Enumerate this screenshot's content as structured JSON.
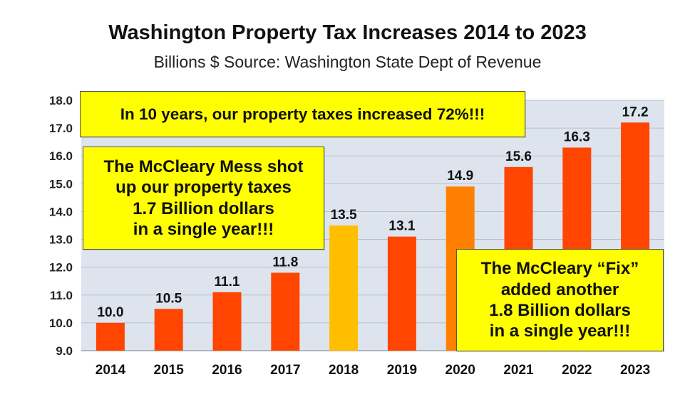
{
  "title": "Washington Property Tax Increases 2014 to 2023",
  "subtitle": "Billions $ Source: Washington State Dept of Revenue",
  "callouts": {
    "top": "In 10 years, our property taxes increased 72%!!!",
    "left": "The McCleary Mess shot\nup our property taxes\n1.7 Billion dollars\nin a single year!!!",
    "right": "The McCleary “Fix”\nadded another\n1.8 Billion dollars\nin a single year!!!"
  },
  "colors": {
    "bar_default": "#ff4500",
    "bar_2018": "#ffbe00",
    "bar_2020": "#ff8000",
    "plot_background": "#dde4ee",
    "gridline": "#b8c0cc",
    "callout_bg": "#ffff00"
  },
  "chart_data": {
    "type": "bar",
    "title": "Washington Property Tax Increases 2014 to 2023",
    "subtitle": "Billions $ Source: Washington State Dept of Revenue",
    "xlabel": "",
    "ylabel": "Billions $",
    "categories": [
      "2014",
      "2015",
      "2016",
      "2017",
      "2018",
      "2019",
      "2020",
      "2021",
      "2022",
      "2023"
    ],
    "values": [
      10.0,
      10.5,
      11.1,
      11.8,
      13.5,
      13.1,
      14.9,
      15.6,
      16.3,
      17.2
    ],
    "data_labels": [
      "10.0",
      "10.5",
      "11.1",
      "11.8",
      "13.5",
      "13.1",
      "14.9",
      "15.6",
      "16.3",
      "17.2"
    ],
    "bar_colors": [
      "#ff4500",
      "#ff4500",
      "#ff4500",
      "#ff4500",
      "#ffbe00",
      "#ff4500",
      "#ff8000",
      "#ff4500",
      "#ff4500",
      "#ff4500"
    ],
    "ylim": [
      9.0,
      18.0
    ],
    "yticks": [
      "9.0",
      "10.0",
      "11.0",
      "12.0",
      "13.0",
      "14.0",
      "15.0",
      "16.0",
      "17.0",
      "18.0"
    ],
    "grid": true,
    "legend": "none"
  }
}
